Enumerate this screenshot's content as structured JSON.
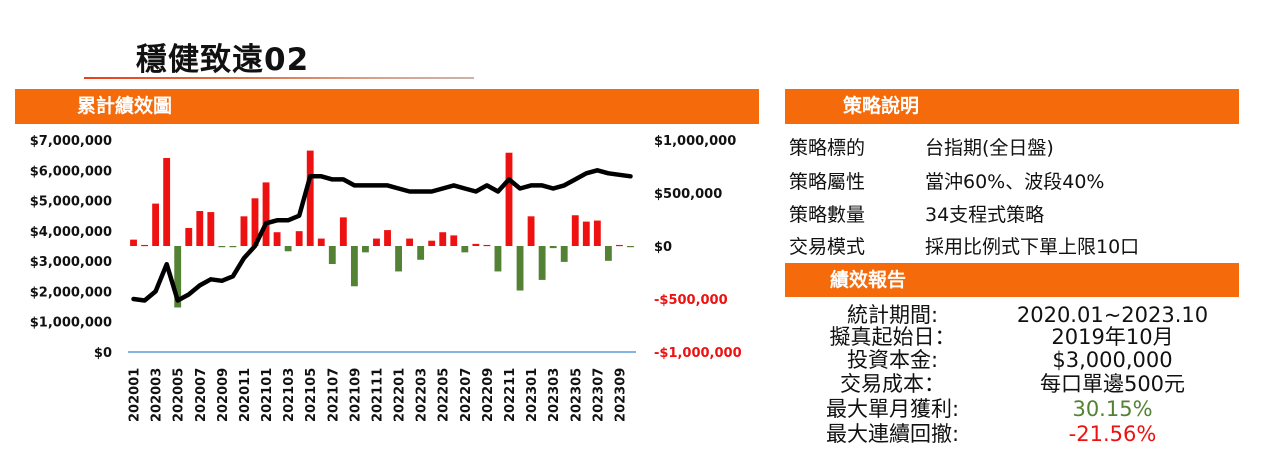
{
  "page_title": "穩健致遠02",
  "chart_header": "累計績效圖",
  "strategy_header": "策略說明",
  "strategy": [
    {
      "label": "策略標的",
      "value": "台指期(全日盤)"
    },
    {
      "label": "策略屬性",
      "value": "當沖60%、波段40%"
    },
    {
      "label": "策略數量",
      "value": "34支程式策略"
    },
    {
      "label": "交易模式",
      "value": "採用比例式下單上限10口"
    }
  ],
  "performance_header": "績效報告",
  "performance": [
    {
      "label": "統計期間:",
      "value": "2020.01~2023.10"
    },
    {
      "label": "擬真起始日：",
      "value": "2019年10月"
    },
    {
      "label": "投資本金:",
      "value": "$3,000,000"
    },
    {
      "label": "交易成本：",
      "value": "每口單邊500元"
    },
    {
      "label": "最大單月獲利:",
      "value": "30.15%"
    },
    {
      "label": "最大連續回撤:",
      "value": "-21.56%"
    }
  ],
  "colors": {
    "accent": "#f56a0a",
    "positive_bar": "#ee1111",
    "negative_bar": "#548235",
    "line": "#000000",
    "profit_text": "#548235",
    "drawdown_text": "#ee1111",
    "right_axis_negative": "#ee1111"
  },
  "chart_data": {
    "type": "bar+line",
    "categories": [
      "202001",
      "202002",
      "202003",
      "202004",
      "202005",
      "202006",
      "202007",
      "202008",
      "202009",
      "202010",
      "202011",
      "202012",
      "202101",
      "202102",
      "202103",
      "202104",
      "202105",
      "202106",
      "202107",
      "202108",
      "202109",
      "202110",
      "202111",
      "202112",
      "202201",
      "202202",
      "202203",
      "202204",
      "202205",
      "202206",
      "202207",
      "202208",
      "202209",
      "202210",
      "202211",
      "202212",
      "202301",
      "202302",
      "202303",
      "202304",
      "202305",
      "202306",
      "202307",
      "202308",
      "202309",
      "202310"
    ],
    "tick_labels": [
      "202001",
      "202003",
      "202005",
      "202007",
      "202009",
      "202011",
      "202101",
      "202103",
      "202105",
      "202107",
      "202109",
      "202111",
      "202201",
      "202203",
      "202205",
      "202207",
      "202209",
      "202211",
      "202301",
      "202303",
      "202305",
      "202307",
      "202309"
    ],
    "left_axis": {
      "min": 0,
      "max": 7000000,
      "ticks": [
        0,
        1000000,
        2000000,
        3000000,
        4000000,
        5000000,
        6000000,
        7000000
      ],
      "tick_labels": [
        "$0",
        "$1,000,000",
        "$2,000,000",
        "$3,000,000",
        "$4,000,000",
        "$5,000,000",
        "$6,000,000",
        "$7,000,000"
      ]
    },
    "right_axis": {
      "min": -1000000,
      "max": 1000000,
      "ticks": [
        1000000,
        500000,
        0,
        -500000,
        -1000000
      ],
      "tick_labels": [
        "$1,000,000",
        "$500,000",
        "$0",
        "-$500,000",
        "-$1,000,000"
      ]
    },
    "series": [
      {
        "type": "bar",
        "axis": "right",
        "values": [
          60000,
          10000,
          400000,
          830000,
          -580000,
          170000,
          330000,
          320000,
          -10000,
          -10000,
          280000,
          450000,
          600000,
          130000,
          -50000,
          140000,
          900000,
          70000,
          -170000,
          270000,
          -380000,
          -60000,
          70000,
          150000,
          -240000,
          70000,
          -130000,
          50000,
          130000,
          100000,
          -60000,
          20000,
          10000,
          -240000,
          880000,
          -420000,
          280000,
          -320000,
          -20000,
          -150000,
          290000,
          230000,
          240000,
          -140000,
          10000,
          -10000
        ]
      },
      {
        "type": "line",
        "axis": "left",
        "values": [
          1750000,
          1700000,
          2000000,
          2900000,
          1700000,
          1900000,
          2200000,
          2400000,
          2350000,
          2500000,
          3100000,
          3500000,
          4250000,
          4350000,
          4350000,
          4500000,
          5800000,
          5800000,
          5700000,
          5700000,
          5500000,
          5500000,
          5500000,
          5500000,
          5400000,
          5300000,
          5300000,
          5300000,
          5400000,
          5500000,
          5400000,
          5300000,
          5500000,
          5300000,
          5700000,
          5400000,
          5500000,
          5500000,
          5400000,
          5500000,
          5700000,
          5900000,
          6000000,
          5900000,
          5850000,
          5800000
        ]
      }
    ]
  }
}
